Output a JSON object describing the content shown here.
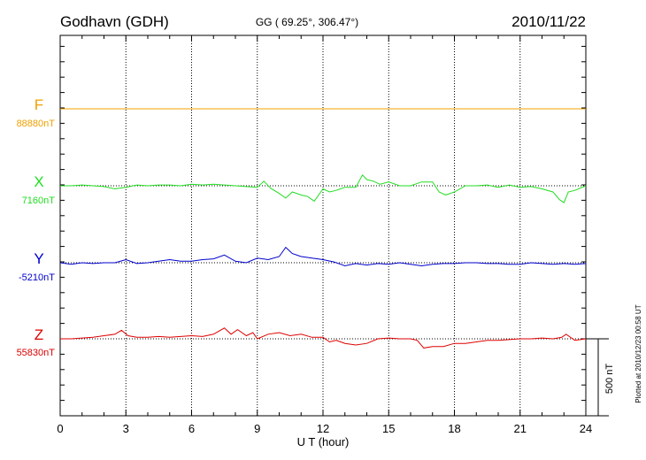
{
  "header": {
    "station": "Godhavn (GDH)",
    "coords": "GG ( 69.25°, 306.47°)",
    "date": "2010/11/22"
  },
  "chart_data": {
    "type": "line",
    "xlabel": "U T (hour)",
    "xlim": [
      0,
      24
    ],
    "x_ticks": [
      "0",
      "3",
      "6",
      "9",
      "12",
      "15",
      "18",
      "21",
      "24"
    ],
    "scale_bar": {
      "label": "500 nT",
      "value_nT": 500
    },
    "grid": true,
    "series": [
      {
        "name": "F",
        "baseline": "88880nT",
        "color": "#f0a000",
        "x": [
          0,
          24
        ],
        "y": [
          0,
          0
        ]
      },
      {
        "name": "X",
        "baseline": "7160nT",
        "color": "#22dd22",
        "x": [
          0,
          0.5,
          1,
          1.5,
          2,
          2.5,
          3,
          3.5,
          4,
          4.5,
          5,
          5.5,
          6,
          6.5,
          7,
          7.5,
          8,
          8.5,
          9,
          9.3,
          9.6,
          10,
          10.3,
          10.6,
          11,
          11.3,
          11.6,
          12,
          12.3,
          12.6,
          13,
          13.5,
          13.8,
          14,
          14.3,
          14.6,
          15,
          15.5,
          16,
          16.5,
          17,
          17.3,
          17.6,
          18,
          18.5,
          19,
          19.5,
          20,
          20.5,
          21,
          21.5,
          22,
          22.5,
          22.8,
          23,
          23.2,
          23.5,
          24
        ],
        "y": [
          0,
          0,
          5,
          0,
          -5,
          -20,
          -10,
          5,
          0,
          5,
          5,
          0,
          10,
          5,
          10,
          5,
          0,
          -5,
          -10,
          30,
          -15,
          -50,
          -80,
          -40,
          -60,
          -70,
          -100,
          -20,
          -40,
          -30,
          -10,
          -10,
          70,
          40,
          30,
          10,
          25,
          0,
          0,
          25,
          25,
          -40,
          -60,
          -40,
          0,
          0,
          5,
          -10,
          5,
          -10,
          -5,
          -20,
          -40,
          -90,
          -110,
          -40,
          -30,
          0
        ]
      },
      {
        "name": "Y",
        "baseline": "-5210nT",
        "color": "#0000cc",
        "x": [
          0,
          0.5,
          1,
          1.5,
          2,
          2.5,
          3,
          3.5,
          4,
          4.5,
          5,
          5.5,
          6,
          6.5,
          7,
          7.5,
          8,
          8.5,
          9,
          9.5,
          10,
          10.3,
          10.6,
          11,
          11.5,
          12,
          12.5,
          13,
          13.5,
          14,
          14.5,
          15,
          15.5,
          16,
          16.5,
          17,
          17.5,
          18,
          18.5,
          19,
          19.5,
          20,
          20.5,
          21,
          21.5,
          22,
          22.5,
          23,
          23.5,
          24
        ],
        "y": [
          0,
          -10,
          0,
          -5,
          0,
          0,
          20,
          -5,
          0,
          10,
          20,
          10,
          10,
          20,
          25,
          50,
          10,
          0,
          30,
          20,
          40,
          100,
          60,
          40,
          30,
          20,
          5,
          -20,
          -5,
          -15,
          -5,
          -10,
          0,
          -10,
          -20,
          -10,
          -5,
          -5,
          0,
          0,
          -5,
          -5,
          -10,
          -10,
          0,
          -5,
          -10,
          -5,
          -10,
          -5
        ]
      },
      {
        "name": "Z",
        "baseline": "55830nT",
        "color": "#dd0000",
        "x": [
          0,
          0.5,
          1,
          1.5,
          2,
          2.5,
          2.8,
          3.1,
          3.5,
          4,
          4.5,
          5,
          5.5,
          6,
          6.5,
          7,
          7.5,
          7.8,
          8.1,
          8.5,
          8.8,
          9,
          9.5,
          10,
          10.5,
          11,
          11.5,
          12,
          12.3,
          12.6,
          13,
          13.5,
          14,
          14.5,
          15,
          15.5,
          16,
          16.3,
          16.6,
          17,
          17.5,
          18,
          18.5,
          19,
          19.5,
          20,
          20.5,
          21,
          21.5,
          22,
          22.5,
          22.9,
          23.1,
          23.5,
          24
        ],
        "y": [
          0,
          0,
          5,
          10,
          20,
          30,
          55,
          20,
          10,
          10,
          15,
          10,
          15,
          20,
          15,
          30,
          70,
          30,
          60,
          20,
          40,
          0,
          30,
          40,
          20,
          30,
          10,
          10,
          -20,
          -10,
          -30,
          -40,
          -30,
          0,
          5,
          0,
          0,
          -10,
          -60,
          -50,
          -50,
          -30,
          -30,
          -20,
          -10,
          -10,
          -5,
          0,
          0,
          5,
          0,
          10,
          30,
          -10,
          0
        ]
      }
    ]
  },
  "footer": {
    "plotted": "Plotted at 2010/12/23 00:58 UT"
  }
}
